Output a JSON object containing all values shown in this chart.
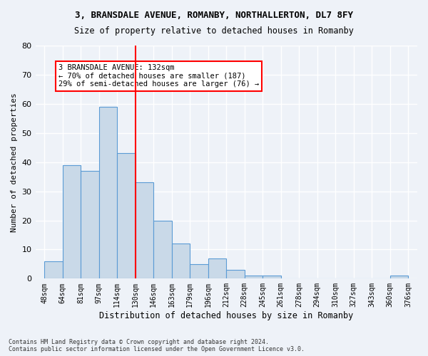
{
  "title1": "3, BRANSDALE AVENUE, ROMANBY, NORTHALLERTON, DL7 8FY",
  "title2": "Size of property relative to detached houses in Romanby",
  "xlabel": "Distribution of detached houses by size in Romanby",
  "ylabel": "Number of detached properties",
  "bar_color": "#c9d9e8",
  "bar_edge_color": "#5b9bd5",
  "tick_labels": [
    "48sqm",
    "64sqm",
    "81sqm",
    "97sqm",
    "114sqm",
    "130sqm",
    "146sqm",
    "163sqm",
    "179sqm",
    "196sqm",
    "212sqm",
    "228sqm",
    "245sqm",
    "261sqm",
    "278sqm",
    "294sqm",
    "310sqm",
    "327sqm",
    "343sqm",
    "360sqm",
    "376sqm"
  ],
  "values": [
    6,
    39,
    37,
    59,
    43,
    33,
    20,
    12,
    5,
    7,
    3,
    1,
    1,
    0,
    0,
    0,
    0,
    0,
    0,
    1
  ],
  "ylim": [
    0,
    80
  ],
  "yticks": [
    0,
    10,
    20,
    30,
    40,
    50,
    60,
    70,
    80
  ],
  "vline_x": 5.0,
  "annotation_text": "3 BRANSDALE AVENUE: 132sqm\n← 70% of detached houses are smaller (187)\n29% of semi-detached houses are larger (76) →",
  "annotation_box_color": "white",
  "annotation_box_edge": "red",
  "footer": "Contains HM Land Registry data © Crown copyright and database right 2024.\nContains public sector information licensed under the Open Government Licence v3.0.",
  "background_color": "#eef2f8",
  "grid_color": "#ffffff",
  "vline_color": "red"
}
